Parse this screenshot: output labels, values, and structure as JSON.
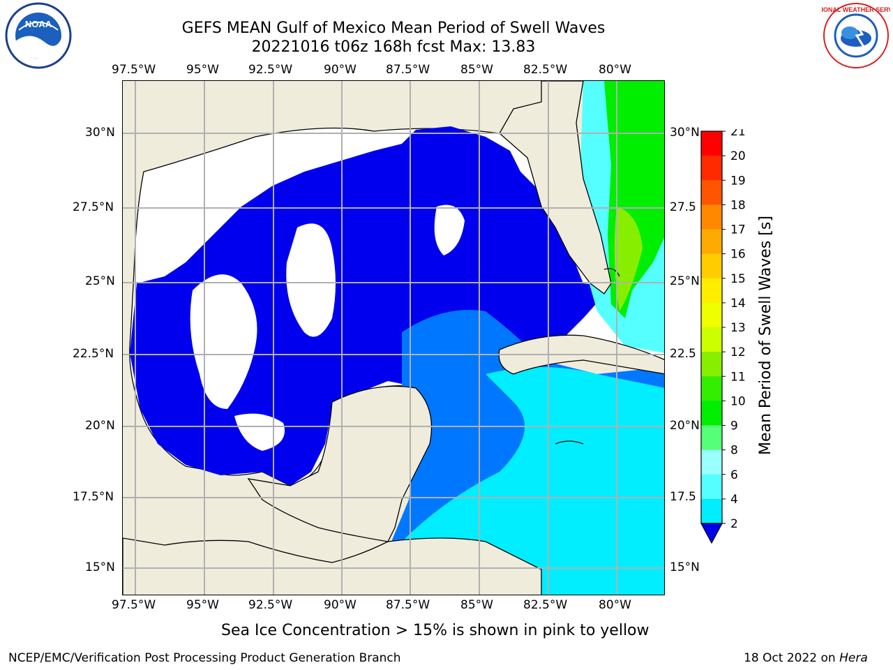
{
  "title": "GEFS MEAN Gulf of Mexico Mean Period of Swell Waves",
  "subtitle": "20221016 t06z 168h fcst   Max: 13.83",
  "x_ticks": [
    "97.5°W",
    "95°W",
    "92.5°W",
    "90°W",
    "87.5°W",
    "85°W",
    "82.5°W",
    "80°W"
  ],
  "y_ticks_left": [
    "30°N",
    "27.5°N",
    "25°N",
    "22.5°N",
    "20°N",
    "17.5°N",
    "15°N"
  ],
  "y_ticks_right": [
    "30°N",
    "27.5",
    "25°N",
    "22.5",
    "20°N",
    "17.5",
    "15°N"
  ],
  "colorbar": {
    "label": "Mean Period of Swell Waves [s]",
    "ticks": [
      "2",
      "4",
      "6",
      "8",
      "9",
      "10",
      "11",
      "12",
      "13",
      "14",
      "15",
      "16",
      "17",
      "18",
      "19",
      "20",
      "21"
    ],
    "colors": [
      "#0000ee",
      "#0077ff",
      "#00eeff",
      "#55ffff",
      "#99ffff",
      "#55ff77",
      "#00ee00",
      "#33ee00",
      "#88ee00",
      "#ccff00",
      "#eeff00",
      "#ffee00",
      "#ffcc00",
      "#ffaa00",
      "#ff8800",
      "#ff5500",
      "#ff2a00",
      "#ff0000"
    ]
  },
  "note": "Sea Ice Concentration > 15% is shown in pink to yellow",
  "footer_left": "NCEP/EMC/Verification Post Processing Product Generation Branch",
  "footer_date": "18 Oct 2022 on",
  "footer_host": "Hera",
  "logos": {
    "left": "NOAA",
    "right": "NATIONAL WEATHER SERVICE"
  },
  "map": {
    "land_color": "#efecdc",
    "grid_color": "#b0b0b0"
  }
}
